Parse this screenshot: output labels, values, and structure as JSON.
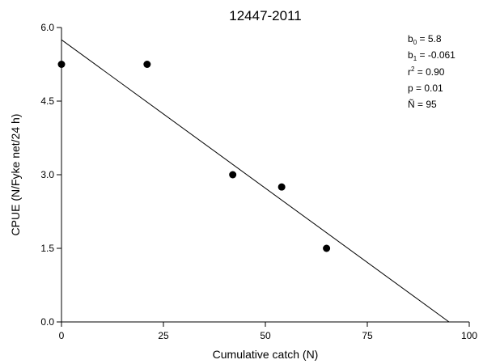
{
  "chart_data": {
    "type": "scatter",
    "title": "12447-2011",
    "xlabel": "Cumulative catch (N)",
    "ylabel": "CPUE (N/Fyke net/24 h)",
    "xlim": [
      0,
      100
    ],
    "ylim": [
      0,
      6
    ],
    "xticks": [
      0,
      25,
      50,
      75,
      100
    ],
    "xtick_labels": [
      "0",
      "25",
      "50",
      "75",
      "100"
    ],
    "yticks": [
      0,
      1.5,
      3,
      4.5,
      6
    ],
    "ytick_labels": [
      "0.0",
      "1.5",
      "3.0",
      "4.5",
      "6.0"
    ],
    "grid": false,
    "points": [
      {
        "x": 0,
        "y": 5.25
      },
      {
        "x": 21,
        "y": 5.25
      },
      {
        "x": 42,
        "y": 3.0
      },
      {
        "x": 54,
        "y": 2.75
      },
      {
        "x": 65,
        "y": 1.5
      }
    ],
    "regression_line": {
      "intercept": 5.75,
      "slope": -0.0605,
      "x_end": 95
    },
    "annotations": {
      "b0_label": "b",
      "b0_sub": "0",
      "b0_value": " = 5.8",
      "b1_label": "b",
      "b1_sub": "1",
      "b1_value": " = -0.061",
      "r2_label": "r",
      "r2_sup": "2",
      "r2_value": " = 0.90",
      "p_text": "p = 0.01",
      "n_text": "Ñ = 95"
    }
  }
}
